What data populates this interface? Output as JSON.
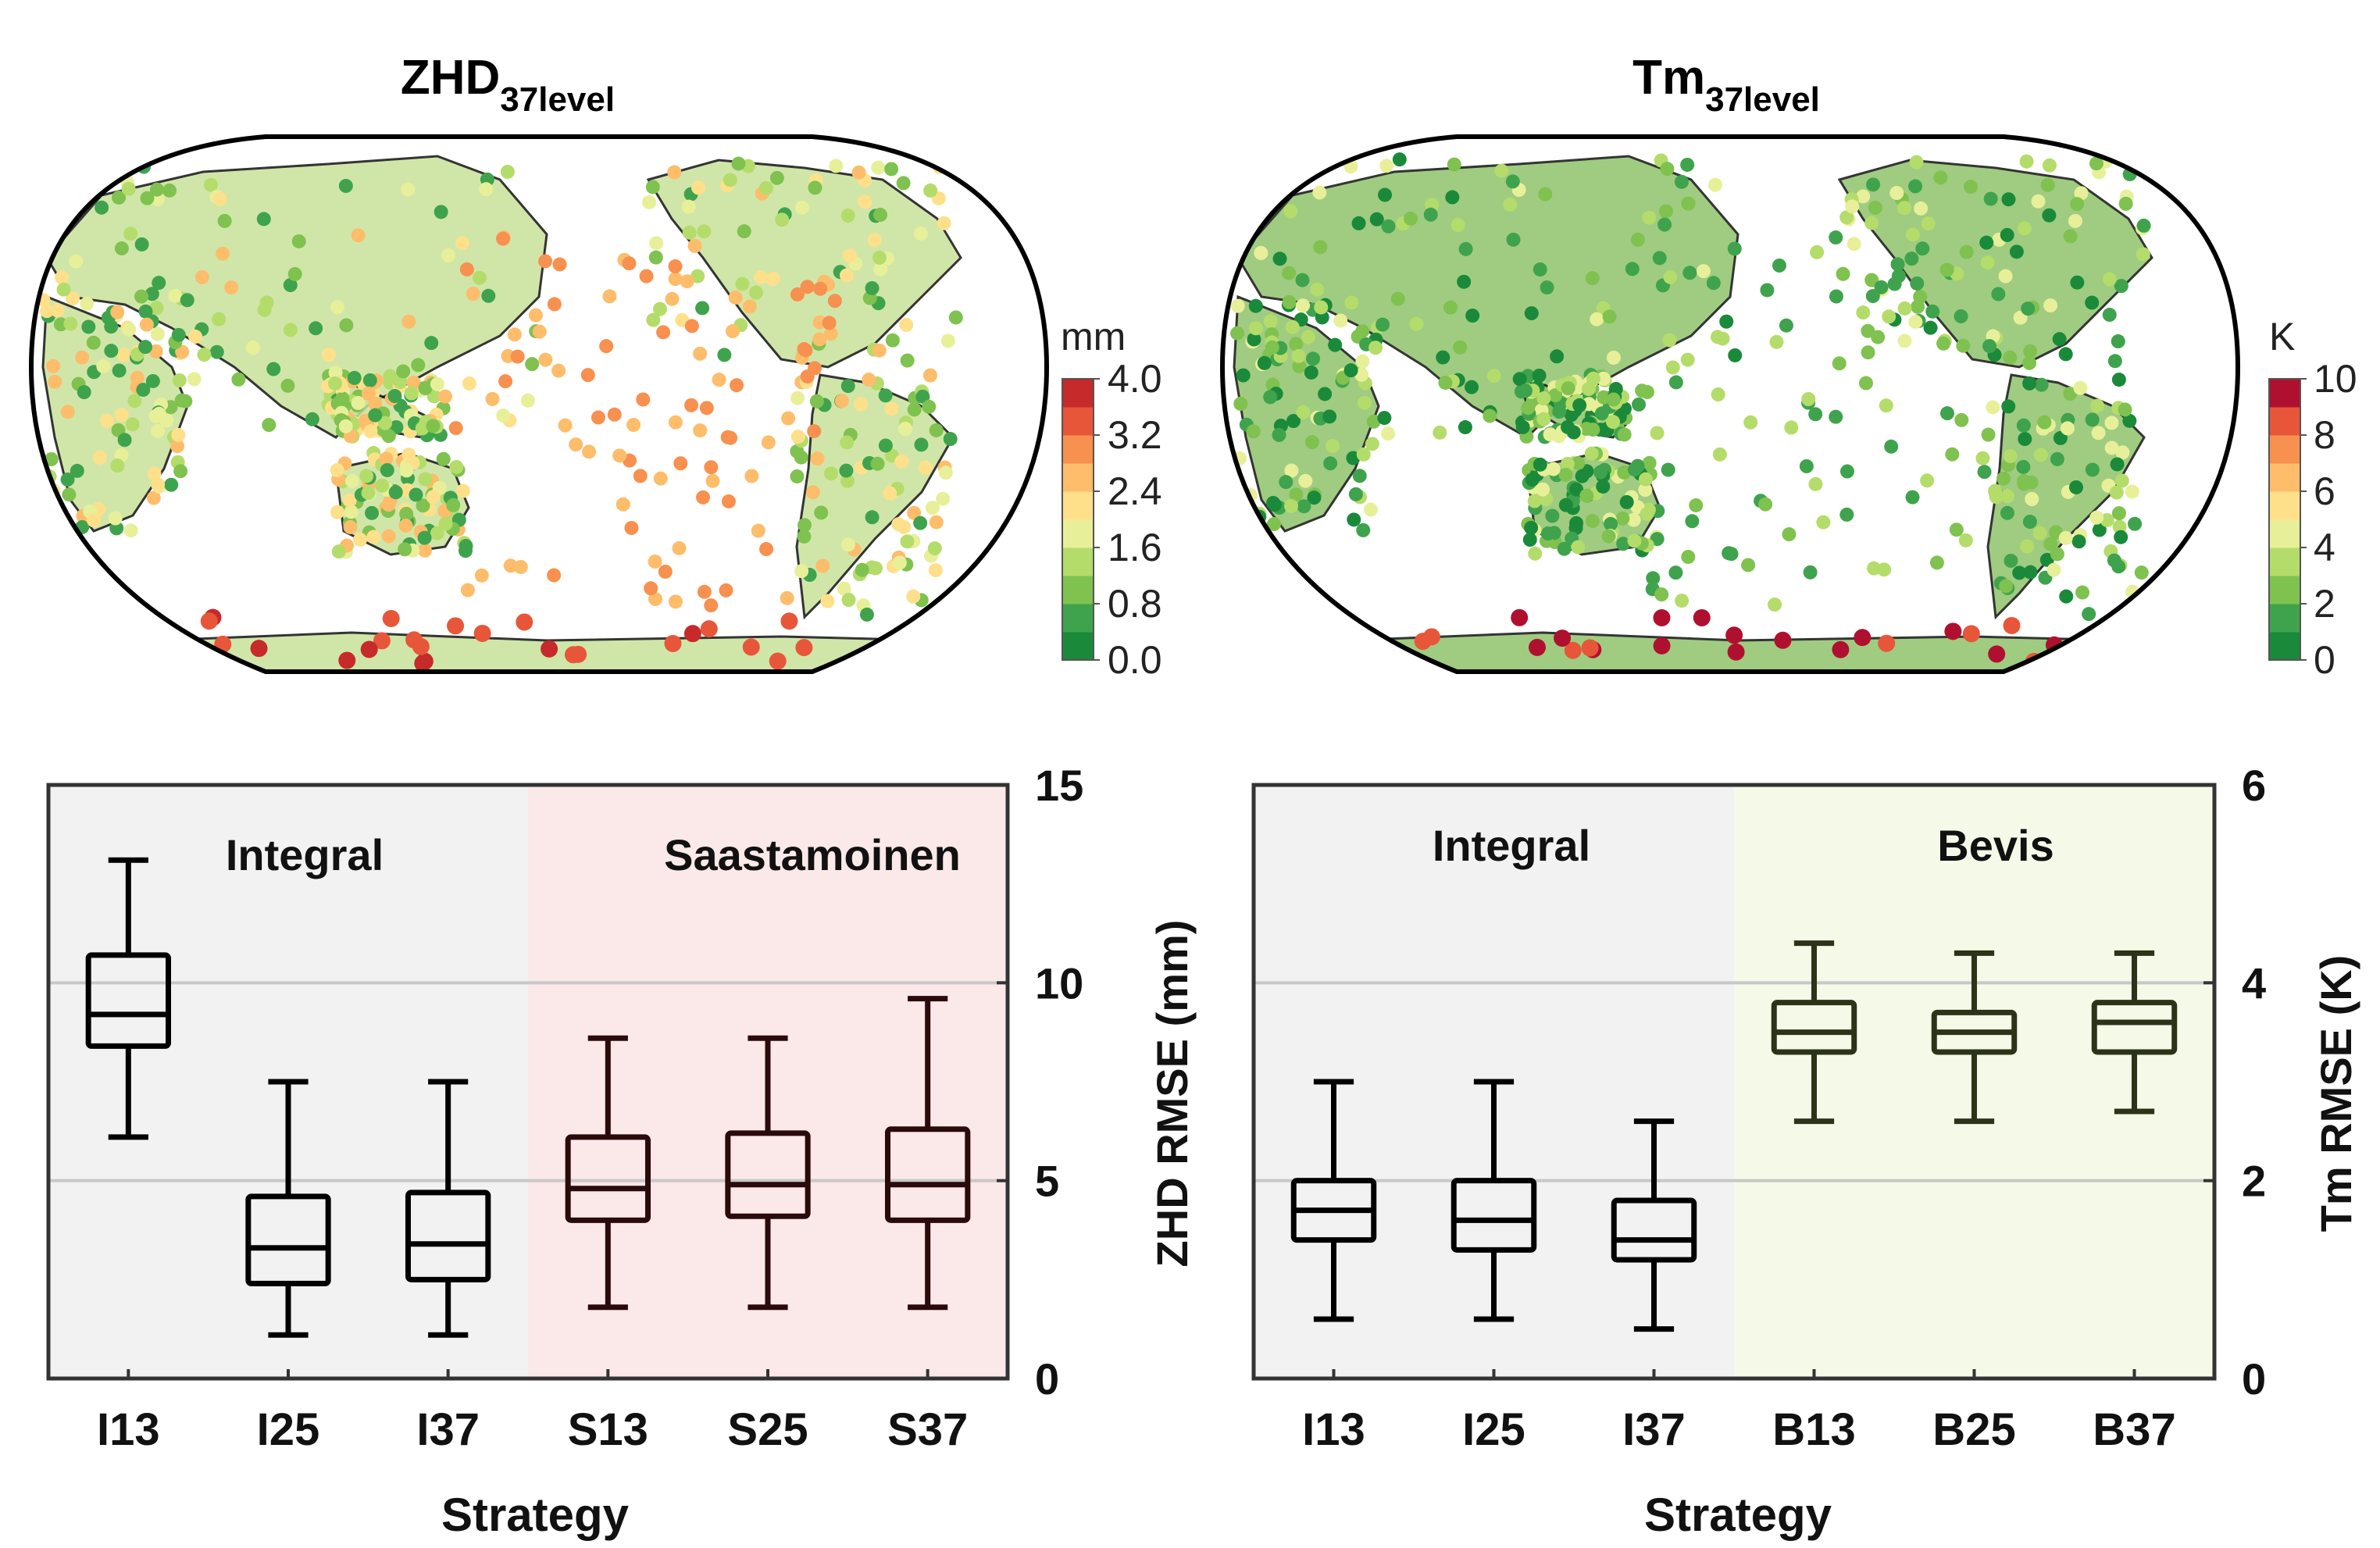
{
  "maps": [
    {
      "id": "zhd",
      "title_main": "ZHD",
      "title_sub": "37level",
      "unit": "mm",
      "colorbar_min": 0.0,
      "colorbar_max": 4.0,
      "colorbar_ticks": [
        "4.0",
        "3.2",
        "2.4",
        "1.6",
        "0.8",
        "0.0"
      ],
      "colors": [
        "#1a8a3a",
        "#3fa34d",
        "#7fc24f",
        "#b4dc6a",
        "#e8ef99",
        "#fee08b",
        "#fdbd6b",
        "#f8904f",
        "#e8563a",
        "#c62a2a"
      ]
    },
    {
      "id": "tm",
      "title_main": "Tm",
      "title_sub": "37level",
      "unit": "K",
      "colorbar_min": 0,
      "colorbar_max": 10,
      "colorbar_ticks": [
        "10",
        "8",
        "6",
        "4",
        "2",
        "0"
      ],
      "colors": [
        "#1a8a3a",
        "#3fa34d",
        "#7fc24f",
        "#b4dc6a",
        "#e8ef99",
        "#fee08b",
        "#fdbd6b",
        "#f8904f",
        "#e8563a",
        "#b01030"
      ]
    }
  ],
  "chart_data": [
    {
      "type": "box",
      "title": "",
      "xlabel": "Strategy",
      "ylabel": "ZHD RMSE (mm)",
      "ylim": [
        0,
        15
      ],
      "yticks": [
        "0",
        "5",
        "10",
        "15"
      ],
      "categories": [
        "I13",
        "I25",
        "I37",
        "S13",
        "S25",
        "S37"
      ],
      "groups": [
        {
          "label": "Integral",
          "members": [
            "I13",
            "I25",
            "I37"
          ],
          "shade": "#f2f2f2"
        },
        {
          "label": "Saastamoinen",
          "members": [
            "S13",
            "S25",
            "S37"
          ],
          "shade": "#fbe8e8"
        }
      ],
      "boxes": [
        {
          "label": "I13",
          "min": 6.1,
          "q1": 8.4,
          "median": 9.2,
          "q3": 10.7,
          "max": 13.1,
          "color": "#000000"
        },
        {
          "label": "I25",
          "min": 1.1,
          "q1": 2.4,
          "median": 3.3,
          "q3": 4.6,
          "max": 7.5,
          "color": "#000000"
        },
        {
          "label": "I37",
          "min": 1.1,
          "q1": 2.5,
          "median": 3.4,
          "q3": 4.7,
          "max": 7.5,
          "color": "#000000"
        },
        {
          "label": "S13",
          "min": 1.8,
          "q1": 4.0,
          "median": 4.8,
          "q3": 6.1,
          "max": 8.6,
          "color": "#2a0a0a"
        },
        {
          "label": "S25",
          "min": 1.8,
          "q1": 4.1,
          "median": 4.9,
          "q3": 6.2,
          "max": 8.6,
          "color": "#2a0a0a"
        },
        {
          "label": "S37",
          "min": 1.8,
          "q1": 4.0,
          "median": 4.9,
          "q3": 6.3,
          "max": 9.6,
          "color": "#2a0a0a"
        }
      ]
    },
    {
      "type": "box",
      "title": "",
      "xlabel": "Strategy",
      "ylabel": "Tm RMSE (K)",
      "ylim": [
        0,
        6
      ],
      "yticks": [
        "0",
        "2",
        "4",
        "6"
      ],
      "categories": [
        "I13",
        "I25",
        "I37",
        "B13",
        "B25",
        "B37"
      ],
      "groups": [
        {
          "label": "Integral",
          "members": [
            "I13",
            "I25",
            "I37"
          ],
          "shade": "#f2f2f2"
        },
        {
          "label": "Bevis",
          "members": [
            "B13",
            "B25",
            "B37"
          ],
          "shade": "#f5fae8"
        }
      ],
      "boxes": [
        {
          "label": "I13",
          "min": 0.6,
          "q1": 1.4,
          "median": 1.7,
          "q3": 2.0,
          "max": 3.0,
          "color": "#000000"
        },
        {
          "label": "I25",
          "min": 0.6,
          "q1": 1.3,
          "median": 1.6,
          "q3": 2.0,
          "max": 3.0,
          "color": "#000000"
        },
        {
          "label": "I37",
          "min": 0.5,
          "q1": 1.2,
          "median": 1.4,
          "q3": 1.8,
          "max": 2.6,
          "color": "#000000"
        },
        {
          "label": "B13",
          "min": 2.6,
          "q1": 3.3,
          "median": 3.5,
          "q3": 3.8,
          "max": 4.4,
          "color": "#2b3318"
        },
        {
          "label": "B25",
          "min": 2.6,
          "q1": 3.3,
          "median": 3.5,
          "q3": 3.7,
          "max": 4.3,
          "color": "#2b3318"
        },
        {
          "label": "B37",
          "min": 2.7,
          "q1": 3.3,
          "median": 3.6,
          "q3": 3.8,
          "max": 4.3,
          "color": "#2b3318"
        }
      ]
    }
  ]
}
